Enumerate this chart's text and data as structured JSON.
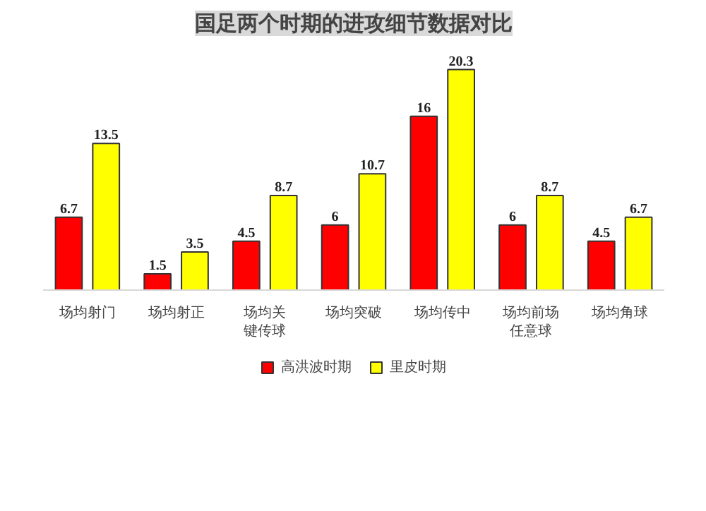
{
  "chart_data": {
    "type": "bar",
    "title": "国足两个时期的进攻细节数据对比",
    "categories": [
      "场均射门",
      "场均射正",
      "场均关键传球",
      "场均突破",
      "场均传中",
      "场均前场任意球",
      "场均角球"
    ],
    "series": [
      {
        "name": "高洪波时期",
        "color": "#ff0000",
        "values": [
          6.7,
          1.5,
          4.5,
          6,
          16,
          6,
          4.5
        ]
      },
      {
        "name": "里皮时期",
        "color": "#ffff00",
        "values": [
          13.5,
          3.5,
          8.7,
          10.7,
          20.3,
          8.7,
          6.7
        ]
      }
    ],
    "tick_labels": "x",
    "data_labels": true,
    "legend": "bottom"
  }
}
